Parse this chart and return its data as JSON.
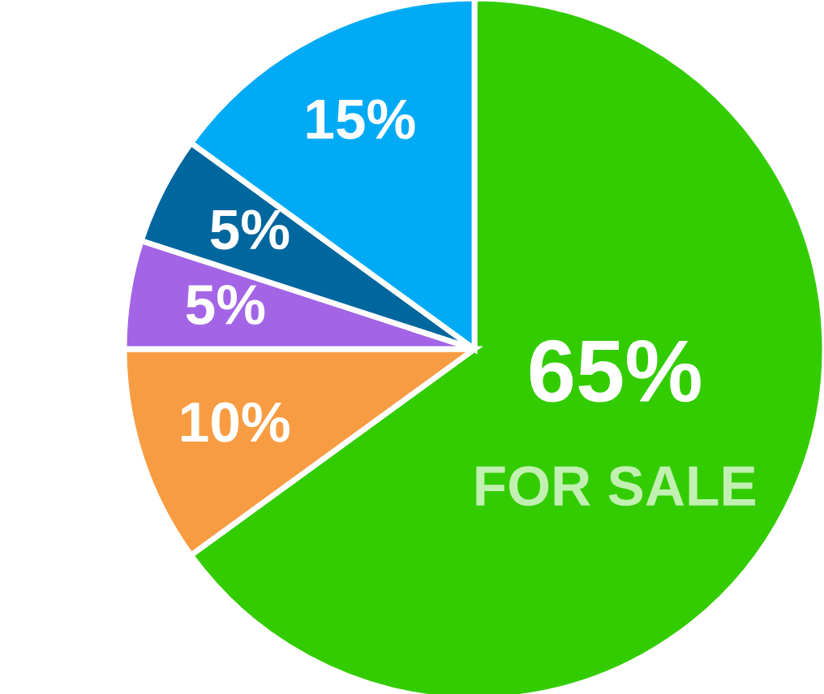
{
  "chart_data": {
    "type": "pie",
    "categories": [
      "FOR SALE",
      null,
      null,
      null,
      null
    ],
    "values": [
      65,
      10,
      5,
      5,
      15
    ],
    "colors": [
      "#33cc00",
      "#f79c42",
      "#a365e6",
      "#00669e",
      "#00aaf5"
    ],
    "value_labels": [
      "65%",
      "10%",
      "5%",
      "5%",
      "15%"
    ],
    "legend": false
  }
}
